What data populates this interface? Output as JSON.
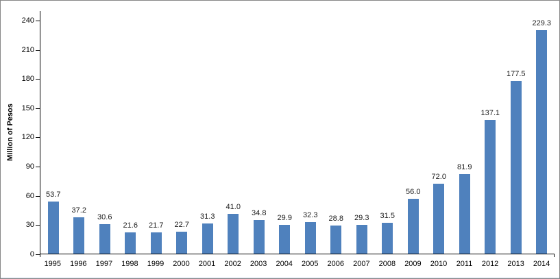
{
  "window": {
    "background": "#ffffff",
    "frame_border_color": "#868686",
    "axis_color": "#000000",
    "text_color": "#000000"
  },
  "chart_data": {
    "type": "bar",
    "title": "",
    "categories": [
      "1995",
      "1996",
      "1997",
      "1998",
      "1999",
      "2000",
      "2001",
      "2002",
      "2003",
      "2004",
      "2005",
      "2006",
      "2007",
      "2008",
      "2009",
      "2010",
      "2011",
      "2012",
      "2013",
      "2014"
    ],
    "values": [
      53.7,
      37.2,
      30.6,
      21.6,
      21.7,
      22.7,
      31.3,
      41.0,
      34.8,
      29.9,
      32.3,
      28.8,
      29.3,
      31.5,
      56.0,
      72.0,
      81.9,
      137.1,
      177.5,
      229.3
    ],
    "data_labels": [
      "53.7",
      "37.2",
      "30.6",
      "21.6",
      "21.7",
      "22.7",
      "31.3",
      "41.0",
      "34.8",
      "29.9",
      "32.3",
      "28.8",
      "29.3",
      "31.5",
      "56.0",
      "72.0",
      "81.9",
      "137.1",
      "177.5",
      "229.3"
    ],
    "xlabel": "",
    "ylabel": "Million of Pesos",
    "ylim": [
      0,
      240
    ],
    "yticks": [
      0,
      30,
      60,
      90,
      120,
      150,
      180,
      210,
      240
    ],
    "grid": false,
    "legend": "none",
    "bar_color": "#4F81BD",
    "data_labels_shown": true
  }
}
